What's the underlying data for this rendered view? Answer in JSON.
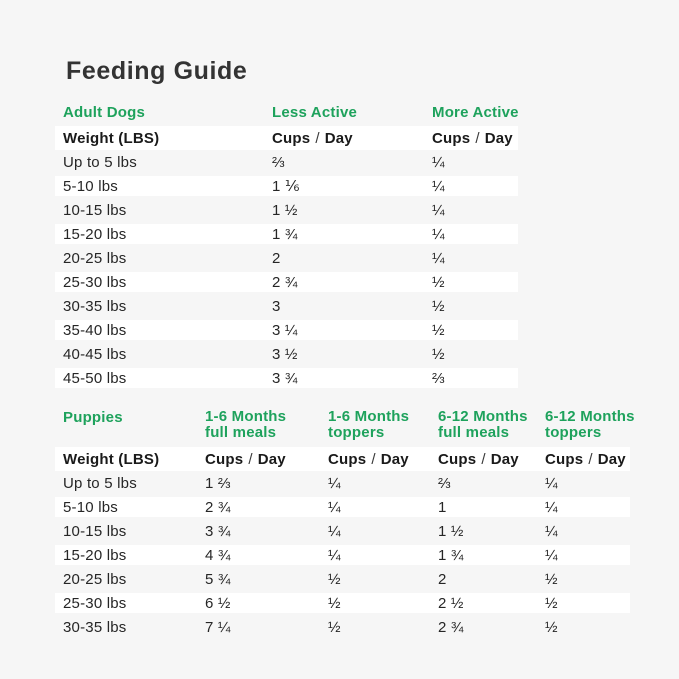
{
  "title": "Feeding Guide",
  "labels": {
    "weight_header": "Weight (LBS)",
    "cups": "Cups",
    "slash": "/",
    "day": "Day"
  },
  "colors": {
    "background": "#F6F6F6",
    "row_stripe": "#FFFFFF",
    "accent_green": "#1EA25C",
    "title_text": "#333333",
    "body_text": "#262626"
  },
  "adult": {
    "section_label": "Adult Dogs",
    "columns": [
      "Less Active",
      "More Active"
    ],
    "rows": [
      {
        "weight": "Up to 5 lbs",
        "less": "⅔",
        "more": "¼"
      },
      {
        "weight": "5-10 lbs",
        "less": "1 ⅙",
        "more": "¼"
      },
      {
        "weight": "10-15 lbs",
        "less": "1 ½",
        "more": "¼"
      },
      {
        "weight": "15-20 lbs",
        "less": "1 ¾",
        "more": "¼"
      },
      {
        "weight": "20-25 lbs",
        "less": "2",
        "more": "¼"
      },
      {
        "weight": "25-30 lbs",
        "less": "2 ¾",
        "more": "½"
      },
      {
        "weight": "30-35 lbs",
        "less": "3",
        "more": "½"
      },
      {
        "weight": "35-40 lbs",
        "less": "3 ¼",
        "more": "½"
      },
      {
        "weight": "40-45 lbs",
        "less": "3 ½",
        "more": "½"
      },
      {
        "weight": "45-50 lbs",
        "less": "3 ¾",
        "more": "⅔"
      }
    ]
  },
  "puppies": {
    "section_label": "Puppies",
    "columns": [
      {
        "line1": "1-6 Months",
        "line2": "full meals"
      },
      {
        "line1": "1-6 Months",
        "line2": "toppers"
      },
      {
        "line1": "6-12 Months",
        "line2": "full meals"
      },
      {
        "line1": "6-12 Months",
        "line2": "toppers"
      }
    ],
    "rows": [
      {
        "weight": "Up to 5 lbs",
        "c1": "1 ⅔",
        "c2": "¼",
        "c3": "⅔",
        "c4": "¼"
      },
      {
        "weight": "5-10 lbs",
        "c1": "2 ¾",
        "c2": "¼",
        "c3": "1",
        "c4": "¼"
      },
      {
        "weight": "10-15 lbs",
        "c1": "3 ¾",
        "c2": "¼",
        "c3": "1 ½",
        "c4": "¼"
      },
      {
        "weight": "15-20 lbs",
        "c1": "4 ¾",
        "c2": "¼",
        "c3": "1 ¾",
        "c4": "¼"
      },
      {
        "weight": "20-25 lbs",
        "c1": "5 ¾",
        "c2": "½",
        "c3": "2",
        "c4": "½"
      },
      {
        "weight": "25-30 lbs",
        "c1": "6 ½",
        "c2": "½",
        "c3": "2 ½",
        "c4": "½"
      },
      {
        "weight": "30-35 lbs",
        "c1": "7 ¼",
        "c2": "½",
        "c3": "2 ¾",
        "c4": "½"
      }
    ]
  }
}
